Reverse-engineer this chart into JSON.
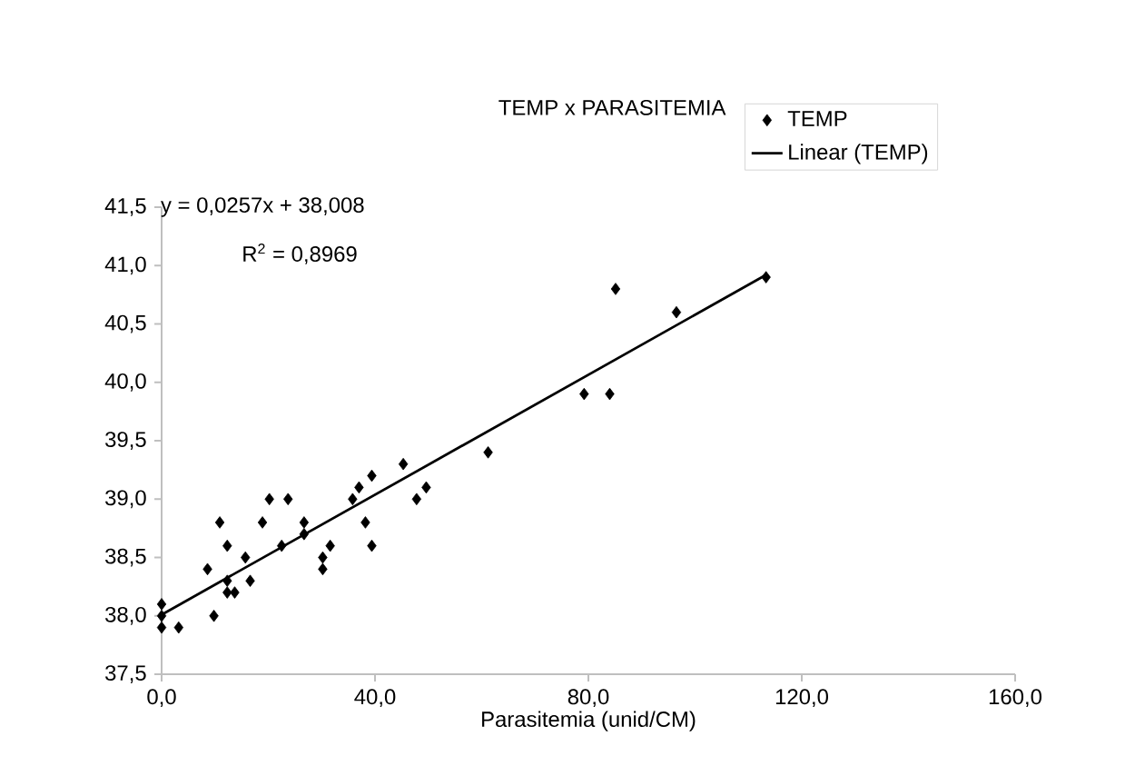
{
  "chart_data": {
    "type": "scatter",
    "title": "TEMP x PARASITEMIA",
    "xlabel": "Parasitemia (unid/CM)",
    "annotations": [
      "y = 0,0257x + 38,008",
      "R$^{2}$ = 0,8969"
    ],
    "xlim": [
      0,
      160
    ],
    "ylim": [
      37.5,
      41.5
    ],
    "xticks": [
      {
        "value": 0,
        "label": "0,0"
      },
      {
        "value": 40,
        "label": "40,0"
      },
      {
        "value": 80,
        "label": "80,0"
      },
      {
        "value": 120,
        "label": "120,0"
      },
      {
        "value": 160,
        "label": "160,0"
      }
    ],
    "yticks": [
      {
        "value": 37.5,
        "label": "37,5"
      },
      {
        "value": 38,
        "label": "38,0"
      },
      {
        "value": 38.5,
        "label": "38,5"
      },
      {
        "value": 39,
        "label": "39,0"
      },
      {
        "value": 39.5,
        "label": "39,5"
      },
      {
        "value": 40,
        "label": "40,0"
      },
      {
        "value": 40.5,
        "label": "40,5"
      },
      {
        "value": 41,
        "label": "41,0"
      },
      {
        "value": 41.5,
        "label": "41,5"
      }
    ],
    "legend": "top right",
    "series": [
      {
        "name": "TEMP",
        "type": "scatter",
        "color": "#000000",
        "marker": "diamond",
        "x": [
          0,
          0,
          0,
          3.2,
          8.6,
          9.8,
          10.9,
          12.3,
          12.3,
          12.3,
          13.7,
          15.7,
          16.6,
          18.9,
          20.2,
          22.5,
          23.7,
          26.7,
          26.7,
          30.2,
          30.2,
          31.6,
          35.8,
          37.0,
          38.2,
          39.4,
          39.4,
          45.3,
          47.8,
          49.6,
          61.2,
          79.2,
          84.0,
          85.1,
          96.5,
          113.3
        ],
        "values": [
          38.1,
          38.0,
          37.9,
          37.9,
          38.4,
          38.0,
          38.8,
          38.6,
          38.3,
          38.2,
          38.2,
          38.5,
          38.3,
          38.8,
          39.0,
          38.6,
          39.0,
          38.8,
          38.7,
          38.5,
          38.4,
          38.6,
          39.0,
          39.1,
          38.8,
          39.2,
          38.6,
          39.3,
          39.0,
          39.1,
          39.4,
          39.9,
          39.9,
          40.8,
          40.6,
          40.9
        ]
      },
      {
        "name": "Linear (TEMP)",
        "type": "line",
        "color": "#000000",
        "marker": "none",
        "line_style": "solid",
        "x": [
          0,
          113.3
        ],
        "values": [
          38.01,
          40.92
        ]
      }
    ]
  }
}
